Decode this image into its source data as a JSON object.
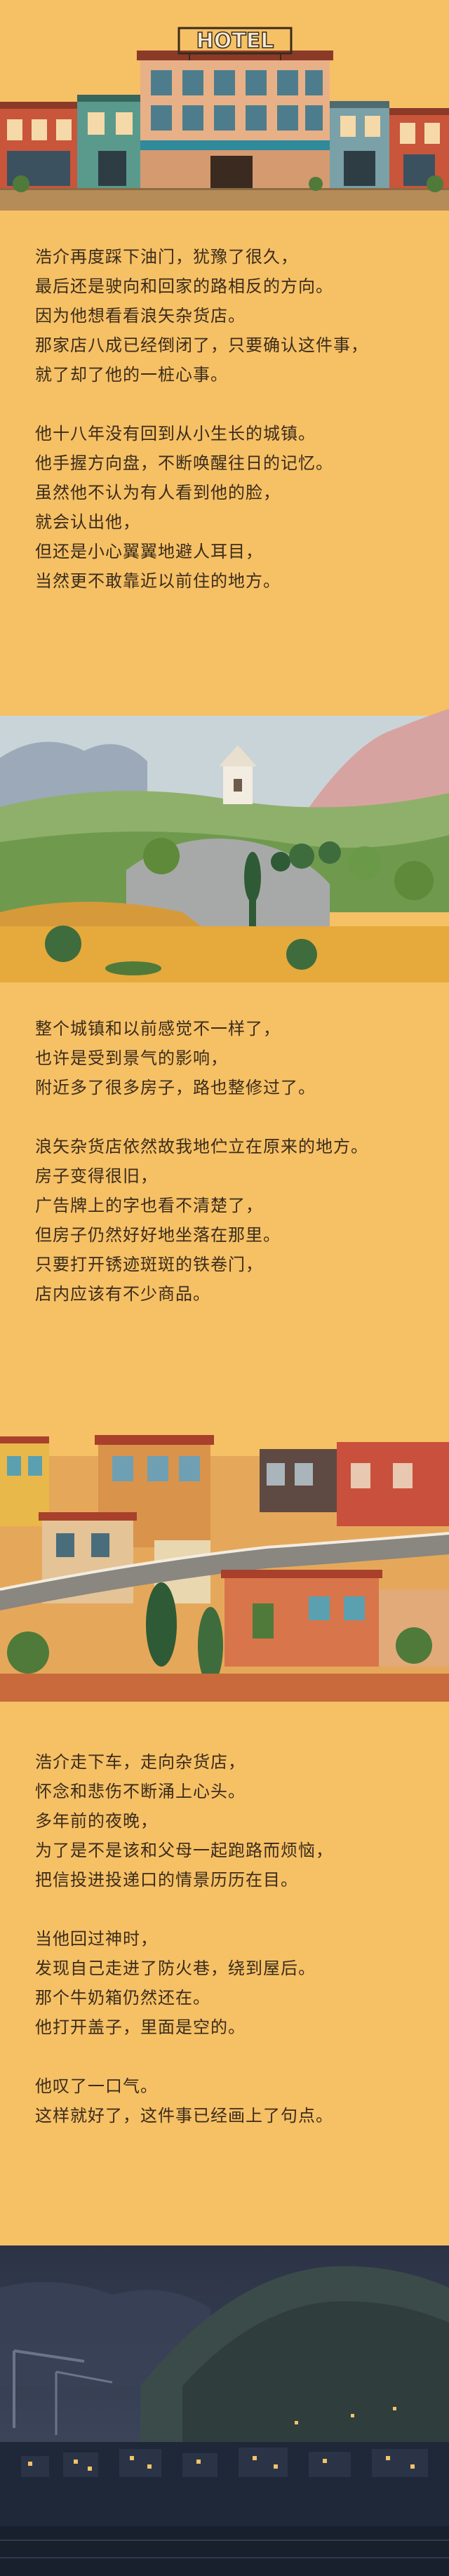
{
  "header_illustration": {
    "hotel_sign": "HOTEL"
  },
  "section_1": {
    "para_1": [
      "浩介再度踩下油门，犹豫了很久，",
      "最后还是驶向和回家的路相反的方向。",
      "因为他想看看浪矢杂货店。",
      "那家店八成已经倒闭了，只要确认这件事，",
      "就了却了他的一桩心事。"
    ],
    "para_2": [
      "他十八年没有回到从小生长的城镇。",
      "他手握方向盘，不断唤醒往日的记忆。",
      "虽然他不认为有人看到他的脸，",
      "就会认出他，",
      "但还是小心翼翼地避人耳目，",
      "当然更不敢靠近以前住的地方。"
    ]
  },
  "section_2": {
    "para_1": [
      "整个城镇和以前感觉不一样了，",
      "也许是受到景气的影响，",
      "附近多了很多房子，路也整修过了。"
    ],
    "para_2": [
      "浪矢杂货店依然故我地伫立在原来的地方。",
      "房子变得很旧，",
      "广告牌上的字也看不清楚了，",
      "但房子仍然好好地坐落在那里。",
      "只要打开锈迹斑斑的铁卷门，",
      "店内应该有不少商品。"
    ]
  },
  "section_3": {
    "para_1": [
      "浩介走下车，走向杂货店，",
      "怀念和悲伤不断涌上心头。",
      "多年前的夜晚，",
      "为了是不是该和父母一起跑路而烦恼，",
      "把信投进投递口的情景历历在目。"
    ],
    "para_2": [
      "当他回过神时，",
      "发现自己走进了防火巷，绕到屋后。",
      "那个牛奶箱仍然还在。",
      "他打开盖子，里面是空的。"
    ],
    "para_3": [
      "他叹了一口气。",
      "这样就好了，这件事已经画上了句点。"
    ]
  }
}
